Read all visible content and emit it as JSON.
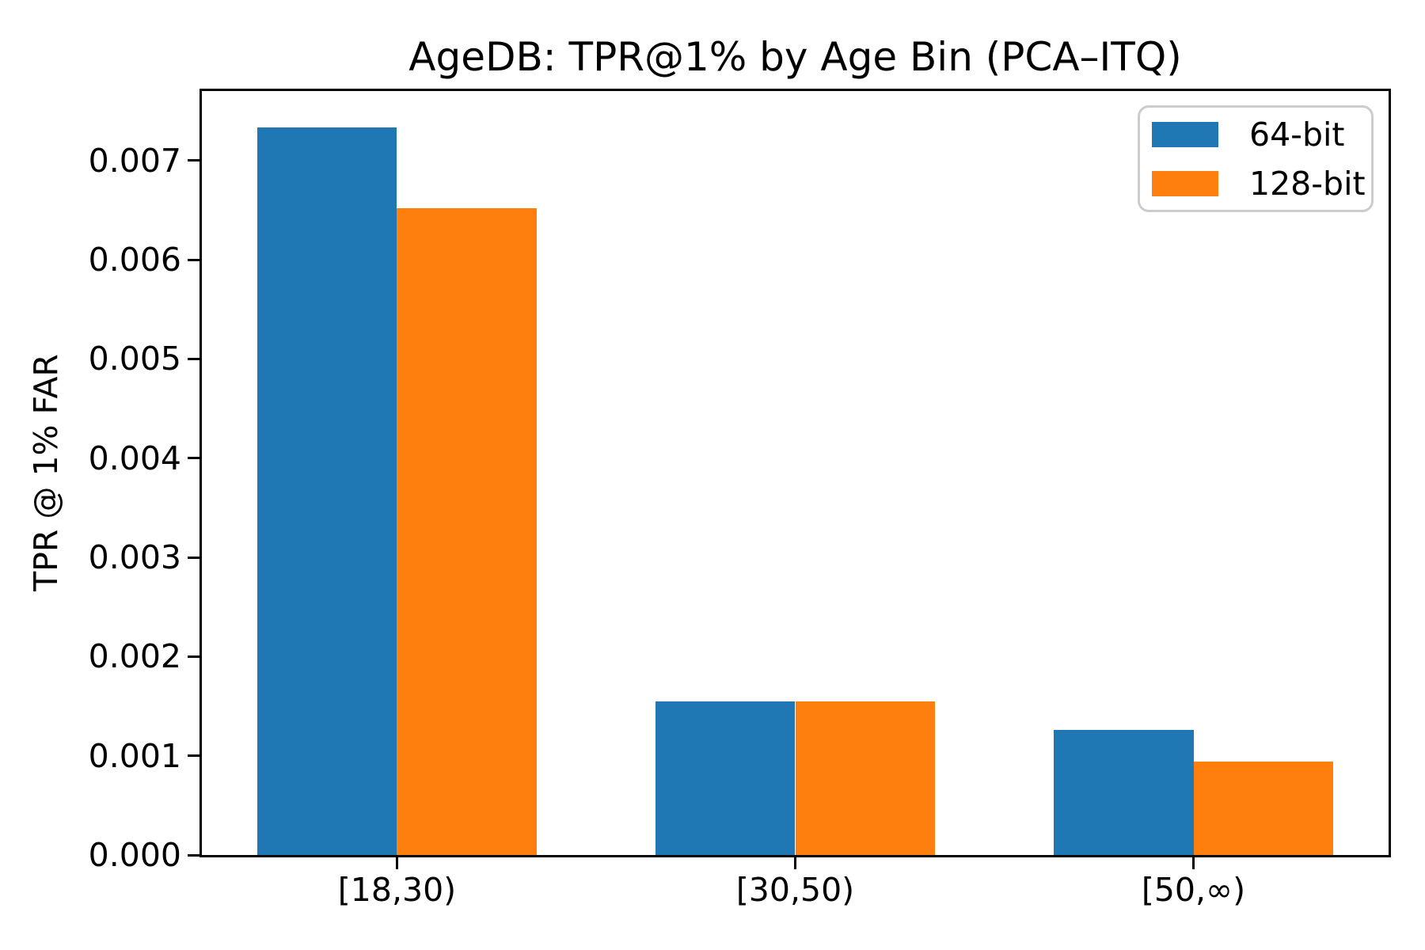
{
  "chart_data": {
    "type": "bar",
    "title": "AgeDB: TPR@1% by Age Bin (PCA–ITQ)",
    "xlabel": "",
    "ylabel": "TPR @ 1% FAR",
    "categories": [
      "[18,30)",
      "[30,50)",
      "[50,∞)"
    ],
    "series": [
      {
        "name": "64-bit",
        "color": "#1f77b4",
        "values": [
          0.00733,
          0.00155,
          0.00126
        ]
      },
      {
        "name": "128-bit",
        "color": "#ff7f0e",
        "values": [
          0.00652,
          0.00155,
          0.00094
        ]
      }
    ],
    "yticks": [
      0.0,
      0.001,
      0.002,
      0.003,
      0.004,
      0.005,
      0.006,
      0.007
    ],
    "ytick_labels": [
      "0.000",
      "0.001",
      "0.002",
      "0.003",
      "0.004",
      "0.005",
      "0.006",
      "0.007"
    ],
    "ylim": [
      0,
      0.0077
    ],
    "xlim": [
      -0.49,
      2.49
    ],
    "bar_width": 0.35,
    "grid": false,
    "legend": {
      "position": "upper right",
      "entries": [
        "64-bit",
        "128-bit"
      ]
    }
  },
  "colors": {
    "background": "#ffffff",
    "axis": "#000000",
    "legend_border": "#cccccc",
    "series_blue": "#1f77b4",
    "series_orange": "#ff7f0e"
  }
}
